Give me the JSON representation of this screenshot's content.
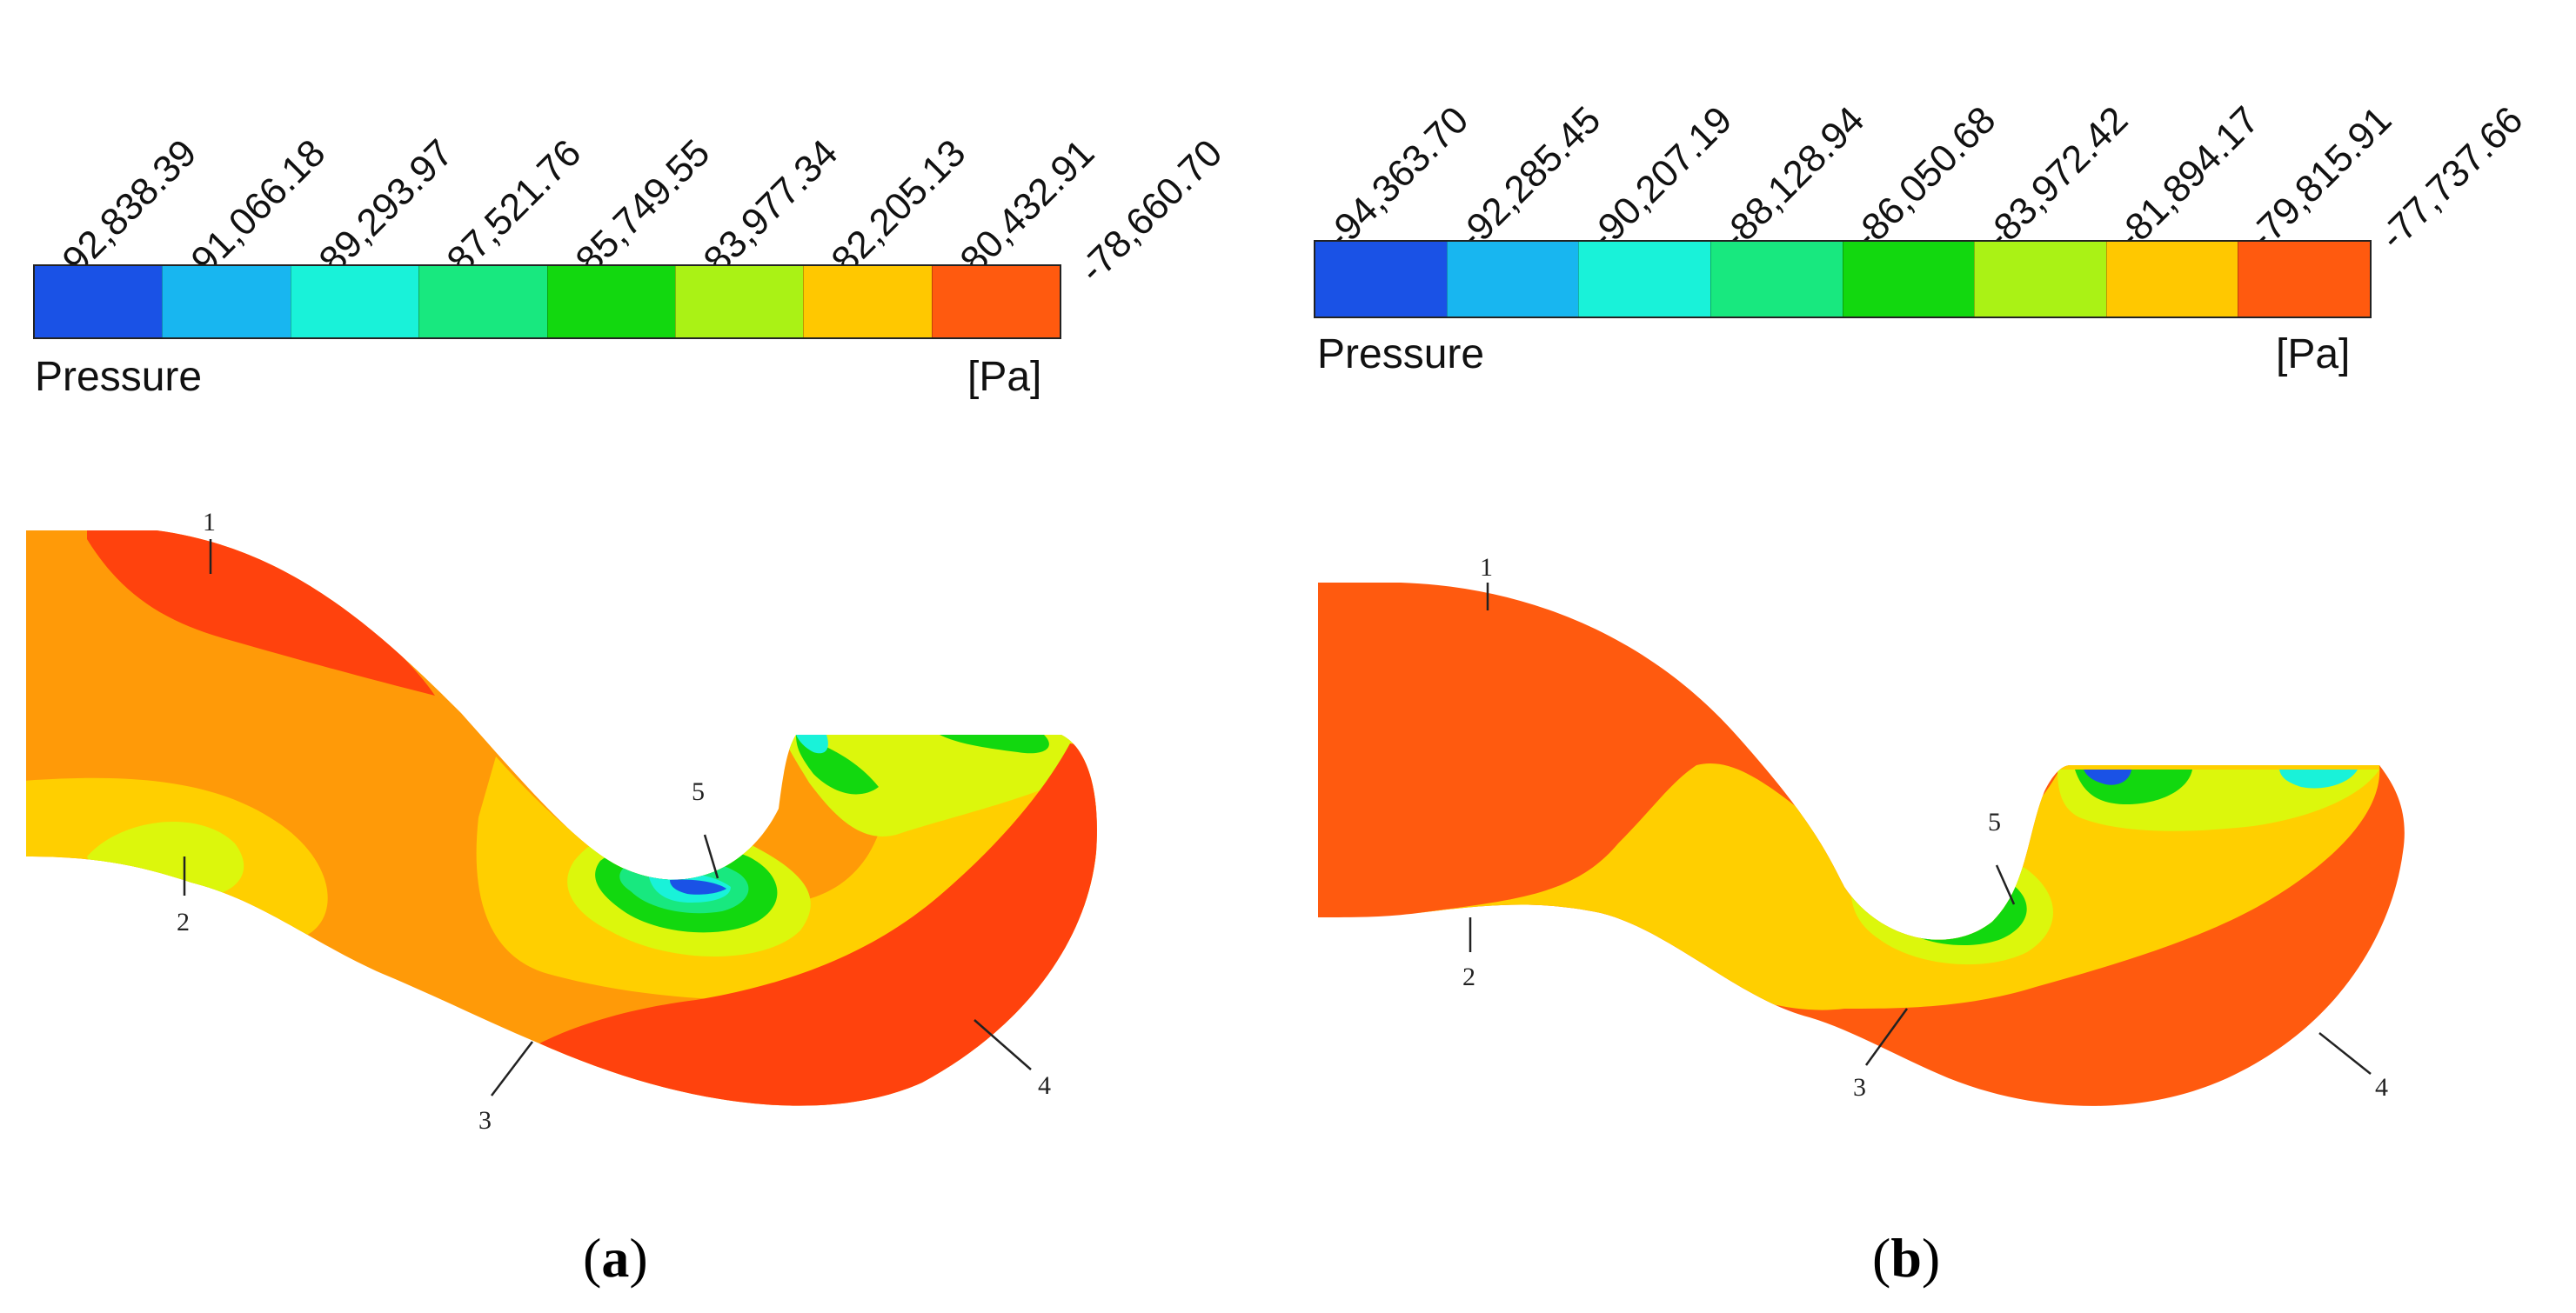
{
  "colors": {
    "levels": [
      "#1a52e6",
      "#18b6f0",
      "#19f2d9",
      "#18e87f",
      "#12d80f",
      "#aaf215",
      "#ffc800",
      "#ff5a0f"
    ],
    "band_light_orange": "#ff9a08",
    "band_dark_red": "#ff420d",
    "band_yellow": "#ffcf00",
    "band_yellow_green": "#dcf70c"
  },
  "panels": [
    {
      "id": "a",
      "caption_open": "(",
      "caption_letter": "a",
      "caption_close": ")",
      "legend": {
        "title": "Pressure",
        "unit": "[Pa]",
        "ticks": [
          "-92,838.39",
          "-91,066.18",
          "-89,293.97",
          "-87,521.76",
          "-85,749.55",
          "-83,977.34",
          "-82,205.13",
          "-80,432.91",
          "-78,660.70"
        ]
      },
      "markers": [
        "1",
        "2",
        "3",
        "4",
        "5"
      ]
    },
    {
      "id": "b",
      "caption_open": "(",
      "caption_letter": "b",
      "caption_close": ")",
      "legend": {
        "title": "Pressure",
        "unit": "[Pa]",
        "ticks": [
          "-94,363.70",
          "-92,285.45",
          "-90,207.19",
          "-88,128.94",
          "-86,050.68",
          "-83,972.42",
          "-81,894.17",
          "-79,815.91",
          "-77,737.66"
        ]
      },
      "markers": [
        "1",
        "2",
        "3",
        "4",
        "5"
      ]
    }
  ]
}
